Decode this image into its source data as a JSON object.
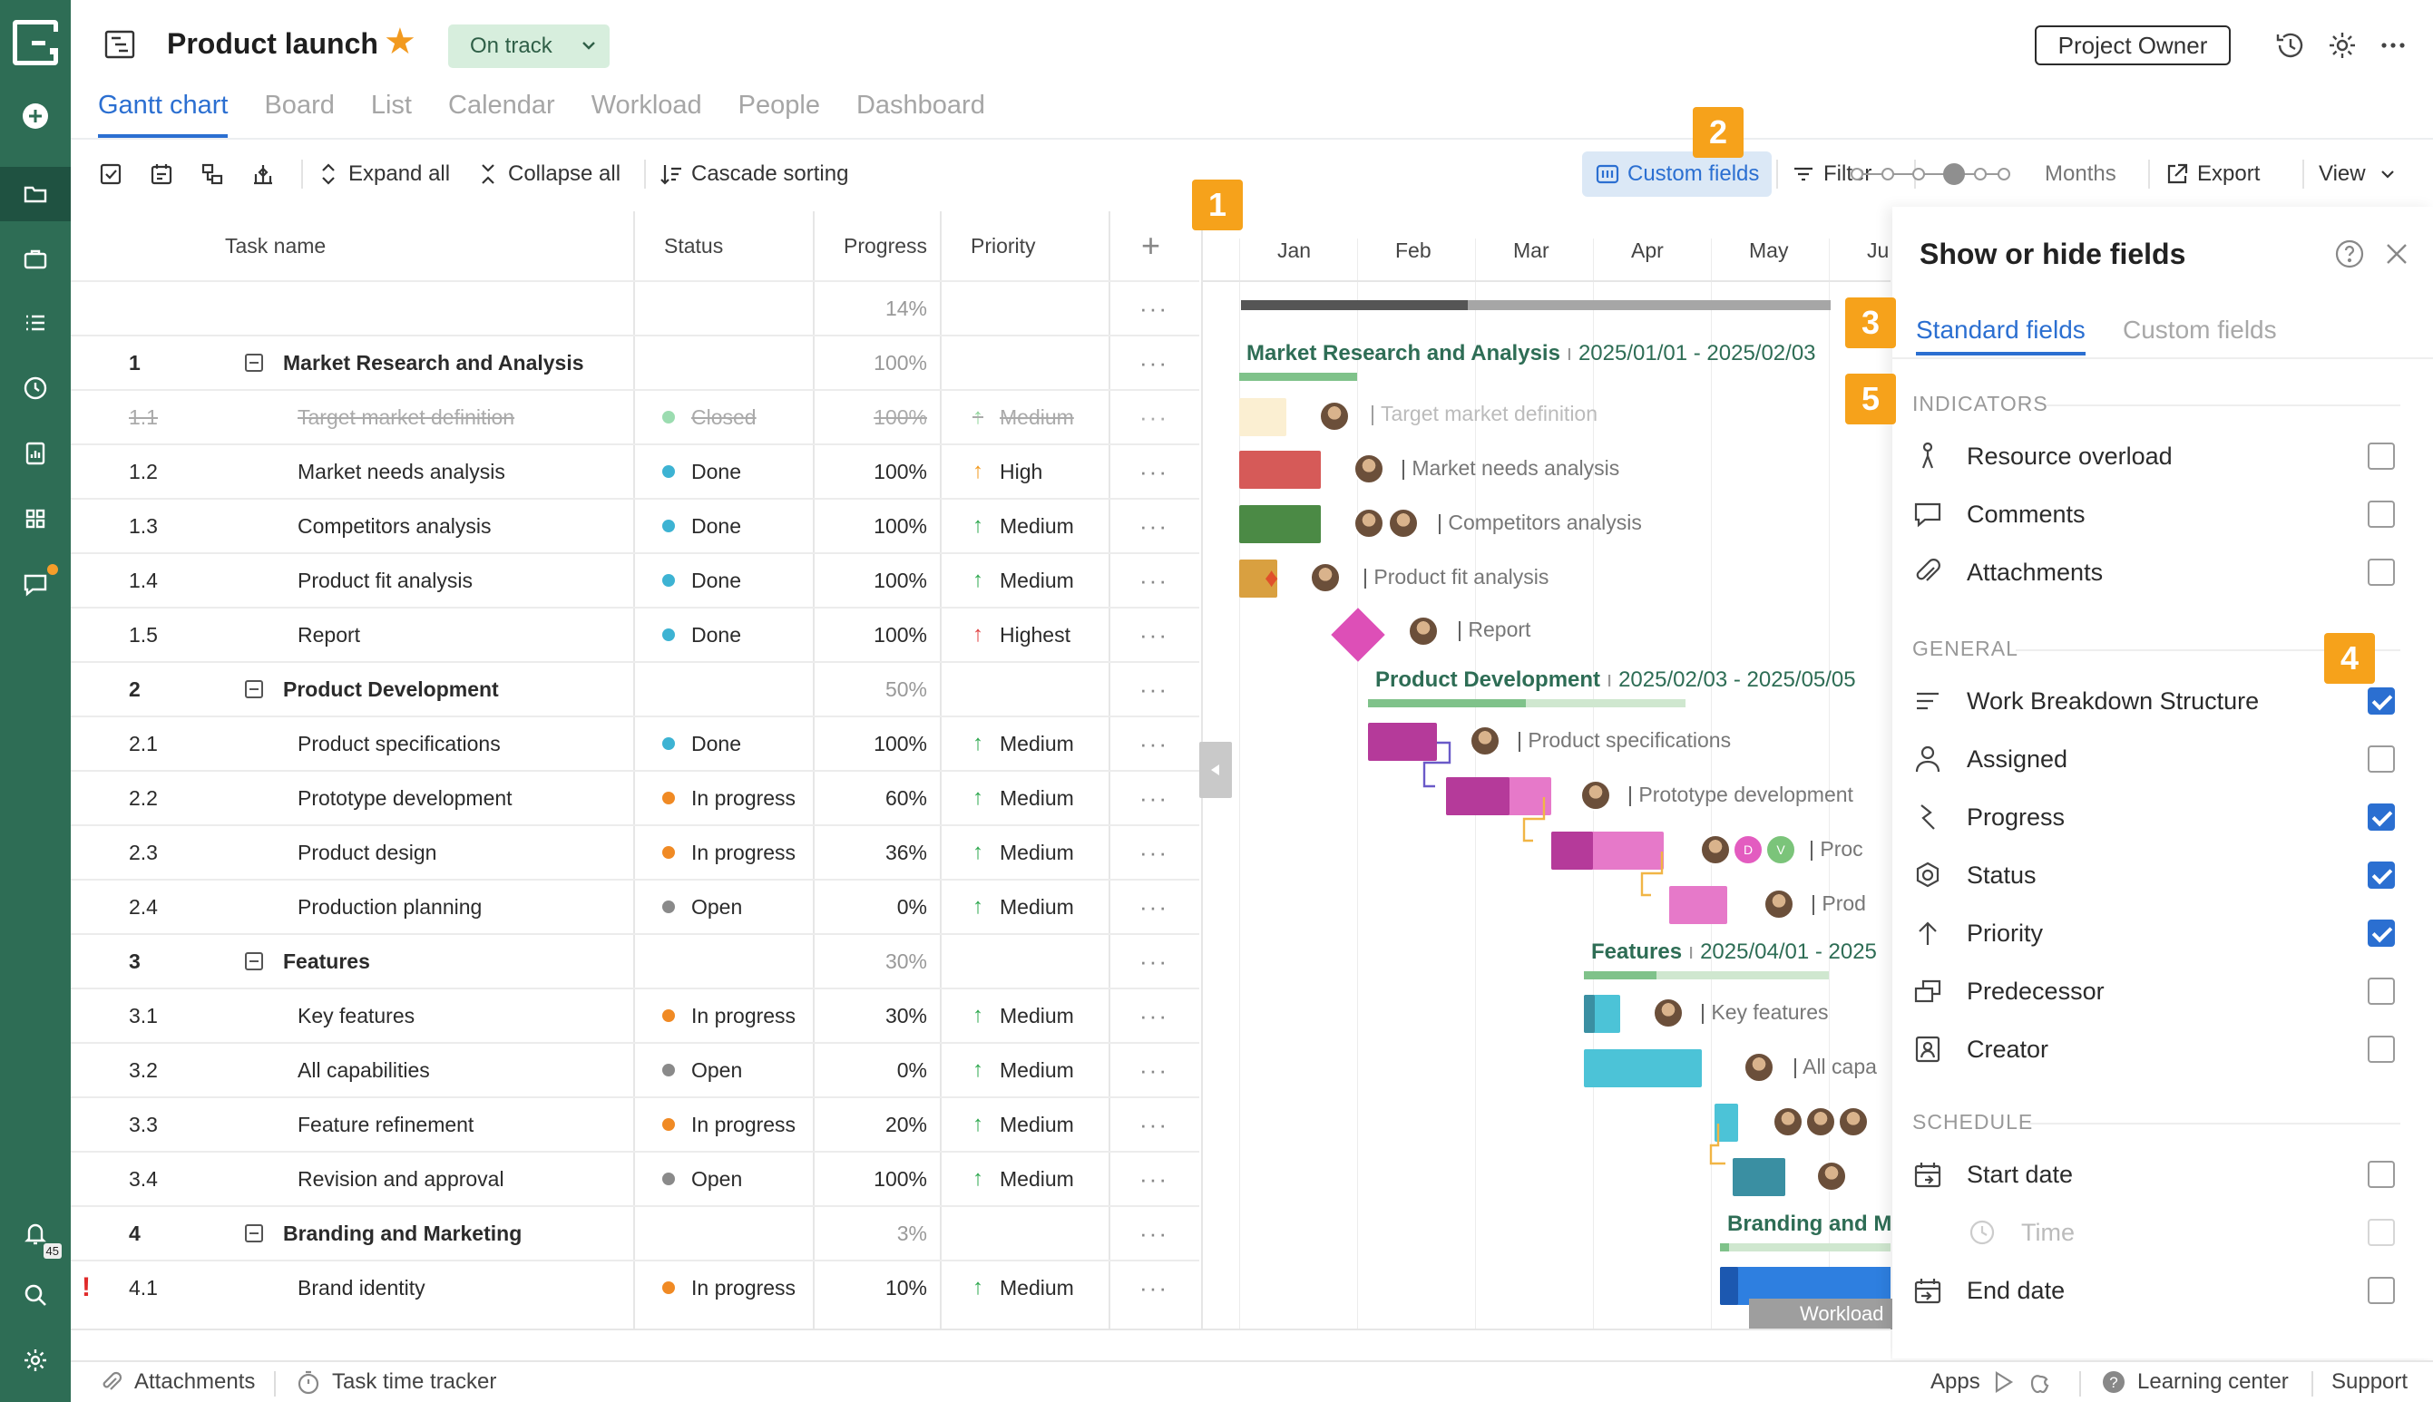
{
  "header": {
    "title": "Product launch",
    "status": "On track",
    "role_button": "Project Owner"
  },
  "tabs": [
    {
      "label": "Gantt chart",
      "active": true
    },
    {
      "label": "Board"
    },
    {
      "label": "List"
    },
    {
      "label": "Calendar"
    },
    {
      "label": "Workload"
    },
    {
      "label": "People"
    },
    {
      "label": "Dashboard"
    }
  ],
  "toolbar": {
    "expand_all": "Expand all",
    "collapse_all": "Collapse all",
    "cascade_sorting": "Cascade sorting",
    "custom_fields": "Custom fields",
    "filter": "Filter",
    "zoom_label": "Months",
    "export": "Export",
    "view": "View"
  },
  "grid": {
    "columns": {
      "task": "Task name",
      "status": "Status",
      "progress": "Progress",
      "priority": "Priority"
    },
    "total_progress": "14%",
    "rows": [
      {
        "wbs": "1",
        "name": "Market Research and Analysis",
        "group": true,
        "progress": "100%"
      },
      {
        "wbs": "1.1",
        "name": "Target market definition",
        "status": "Closed",
        "status_color": "#9bdcb0",
        "progress": "100%",
        "priority": "Medium",
        "priority_color": "#8fd49a",
        "strike": true
      },
      {
        "wbs": "1.2",
        "name": "Market needs analysis",
        "status": "Done",
        "status_color": "#3db3d3",
        "progress": "100%",
        "priority": "High",
        "priority_color": "#f29a1f"
      },
      {
        "wbs": "1.3",
        "name": "Competitors analysis",
        "status": "Done",
        "status_color": "#3db3d3",
        "progress": "100%",
        "priority": "Medium",
        "priority_color": "#2fa84f"
      },
      {
        "wbs": "1.4",
        "name": "Product fit analysis",
        "status": "Done",
        "status_color": "#3db3d3",
        "progress": "100%",
        "priority": "Medium",
        "priority_color": "#2fa84f"
      },
      {
        "wbs": "1.5",
        "name": "Report",
        "status": "Done",
        "status_color": "#3db3d3",
        "progress": "100%",
        "priority": "Highest",
        "priority_color": "#e04141"
      },
      {
        "wbs": "2",
        "name": "Product Development",
        "group": true,
        "progress": "50%"
      },
      {
        "wbs": "2.1",
        "name": "Product specifications",
        "status": "Done",
        "status_color": "#3db3d3",
        "progress": "100%",
        "priority": "Medium",
        "priority_color": "#2fa84f"
      },
      {
        "wbs": "2.2",
        "name": "Prototype development",
        "status": "In progress",
        "status_color": "#f08a24",
        "progress": "60%",
        "priority": "Medium",
        "priority_color": "#2fa84f"
      },
      {
        "wbs": "2.3",
        "name": "Product design",
        "status": "In progress",
        "status_color": "#f08a24",
        "progress": "36%",
        "priority": "Medium",
        "priority_color": "#2fa84f"
      },
      {
        "wbs": "2.4",
        "name": "Production planning",
        "status": "Open",
        "status_color": "#8a8a8a",
        "progress": "0%",
        "priority": "Medium",
        "priority_color": "#2fa84f"
      },
      {
        "wbs": "3",
        "name": "Features",
        "group": true,
        "progress": "30%"
      },
      {
        "wbs": "3.1",
        "name": "Key features",
        "status": "In progress",
        "status_color": "#f08a24",
        "progress": "30%",
        "priority": "Medium",
        "priority_color": "#2fa84f"
      },
      {
        "wbs": "3.2",
        "name": "All capabilities",
        "status": "Open",
        "status_color": "#8a8a8a",
        "progress": "0%",
        "priority": "Medium",
        "priority_color": "#2fa84f"
      },
      {
        "wbs": "3.3",
        "name": "Feature refinement",
        "status": "In progress",
        "status_color": "#f08a24",
        "progress": "20%",
        "priority": "Medium",
        "priority_color": "#2fa84f"
      },
      {
        "wbs": "3.4",
        "name": "Revision and approval",
        "status": "Open",
        "status_color": "#8a8a8a",
        "progress": "100%",
        "priority": "Medium",
        "priority_color": "#2fa84f"
      },
      {
        "wbs": "4",
        "name": "Branding and Marketing",
        "group": true,
        "progress": "3%"
      },
      {
        "wbs": "4.1",
        "name": "Brand identity",
        "status": "In progress",
        "status_color": "#f08a24",
        "progress": "10%",
        "priority": "Medium",
        "priority_color": "#2fa84f",
        "flag": "!"
      }
    ]
  },
  "gantt": {
    "months": [
      "Jan",
      "Feb",
      "Mar",
      "Apr",
      "May",
      "Ju"
    ],
    "groups": [
      {
        "name": "Market Research and Analysis",
        "range": "2025/01/01 - 2025/02/03"
      },
      {
        "name": "Product Development",
        "range": "2025/02/03 - 2025/05/05"
      },
      {
        "name": "Features",
        "range": "2025/04/01 - 2025"
      },
      {
        "name": "Branding and Ma",
        "range": ""
      }
    ],
    "task_labels": [
      "Target market definition",
      "Market needs analysis",
      "Competitors analysis",
      "Product fit analysis",
      "Report",
      "Product specifications",
      "Prototype development",
      "Proc",
      "Prod",
      "Key features",
      "All capa"
    ],
    "avatar_letters": [
      "D",
      "V"
    ],
    "workload_tab": "Workload"
  },
  "panel": {
    "title": "Show or hide fields",
    "tabs": [
      "Standard fields",
      "Custom fields"
    ],
    "sections": {
      "indicators": "INDICATORS",
      "general": "GENERAL",
      "schedule": "SCHEDULE"
    },
    "indicators": [
      {
        "label": "Resource overload",
        "checked": false,
        "icon": "resource-overload-icon"
      },
      {
        "label": "Comments",
        "checked": false,
        "icon": "comment-icon"
      },
      {
        "label": "Attachments",
        "checked": false,
        "icon": "paperclip-icon"
      }
    ],
    "general": [
      {
        "label": "Work Breakdown Structure",
        "checked": true,
        "icon": "wbs-icon"
      },
      {
        "label": "Assigned",
        "checked": false,
        "icon": "person-icon"
      },
      {
        "label": "Progress",
        "checked": true,
        "icon": "progress-icon"
      },
      {
        "label": "Status",
        "checked": true,
        "icon": "status-icon"
      },
      {
        "label": "Priority",
        "checked": true,
        "icon": "arrow-up-icon"
      },
      {
        "label": "Predecessor",
        "checked": false,
        "icon": "predecessor-icon"
      },
      {
        "label": "Creator",
        "checked": false,
        "icon": "creator-icon"
      }
    ],
    "schedule": [
      {
        "label": "Start date",
        "checked": false,
        "icon": "calendar-start-icon"
      },
      {
        "label": "Time",
        "checked": false,
        "icon": "clock-icon",
        "sub": true
      },
      {
        "label": "End date",
        "checked": false,
        "icon": "calendar-end-icon"
      }
    ]
  },
  "callouts": [
    "1",
    "2",
    "3",
    "4",
    "5"
  ],
  "footer": {
    "attachments": "Attachments",
    "time_tracker": "Task time tracker",
    "apps": "Apps",
    "learning": "Learning center",
    "support": "Support"
  },
  "sidebar": {
    "notification_count": "45"
  }
}
